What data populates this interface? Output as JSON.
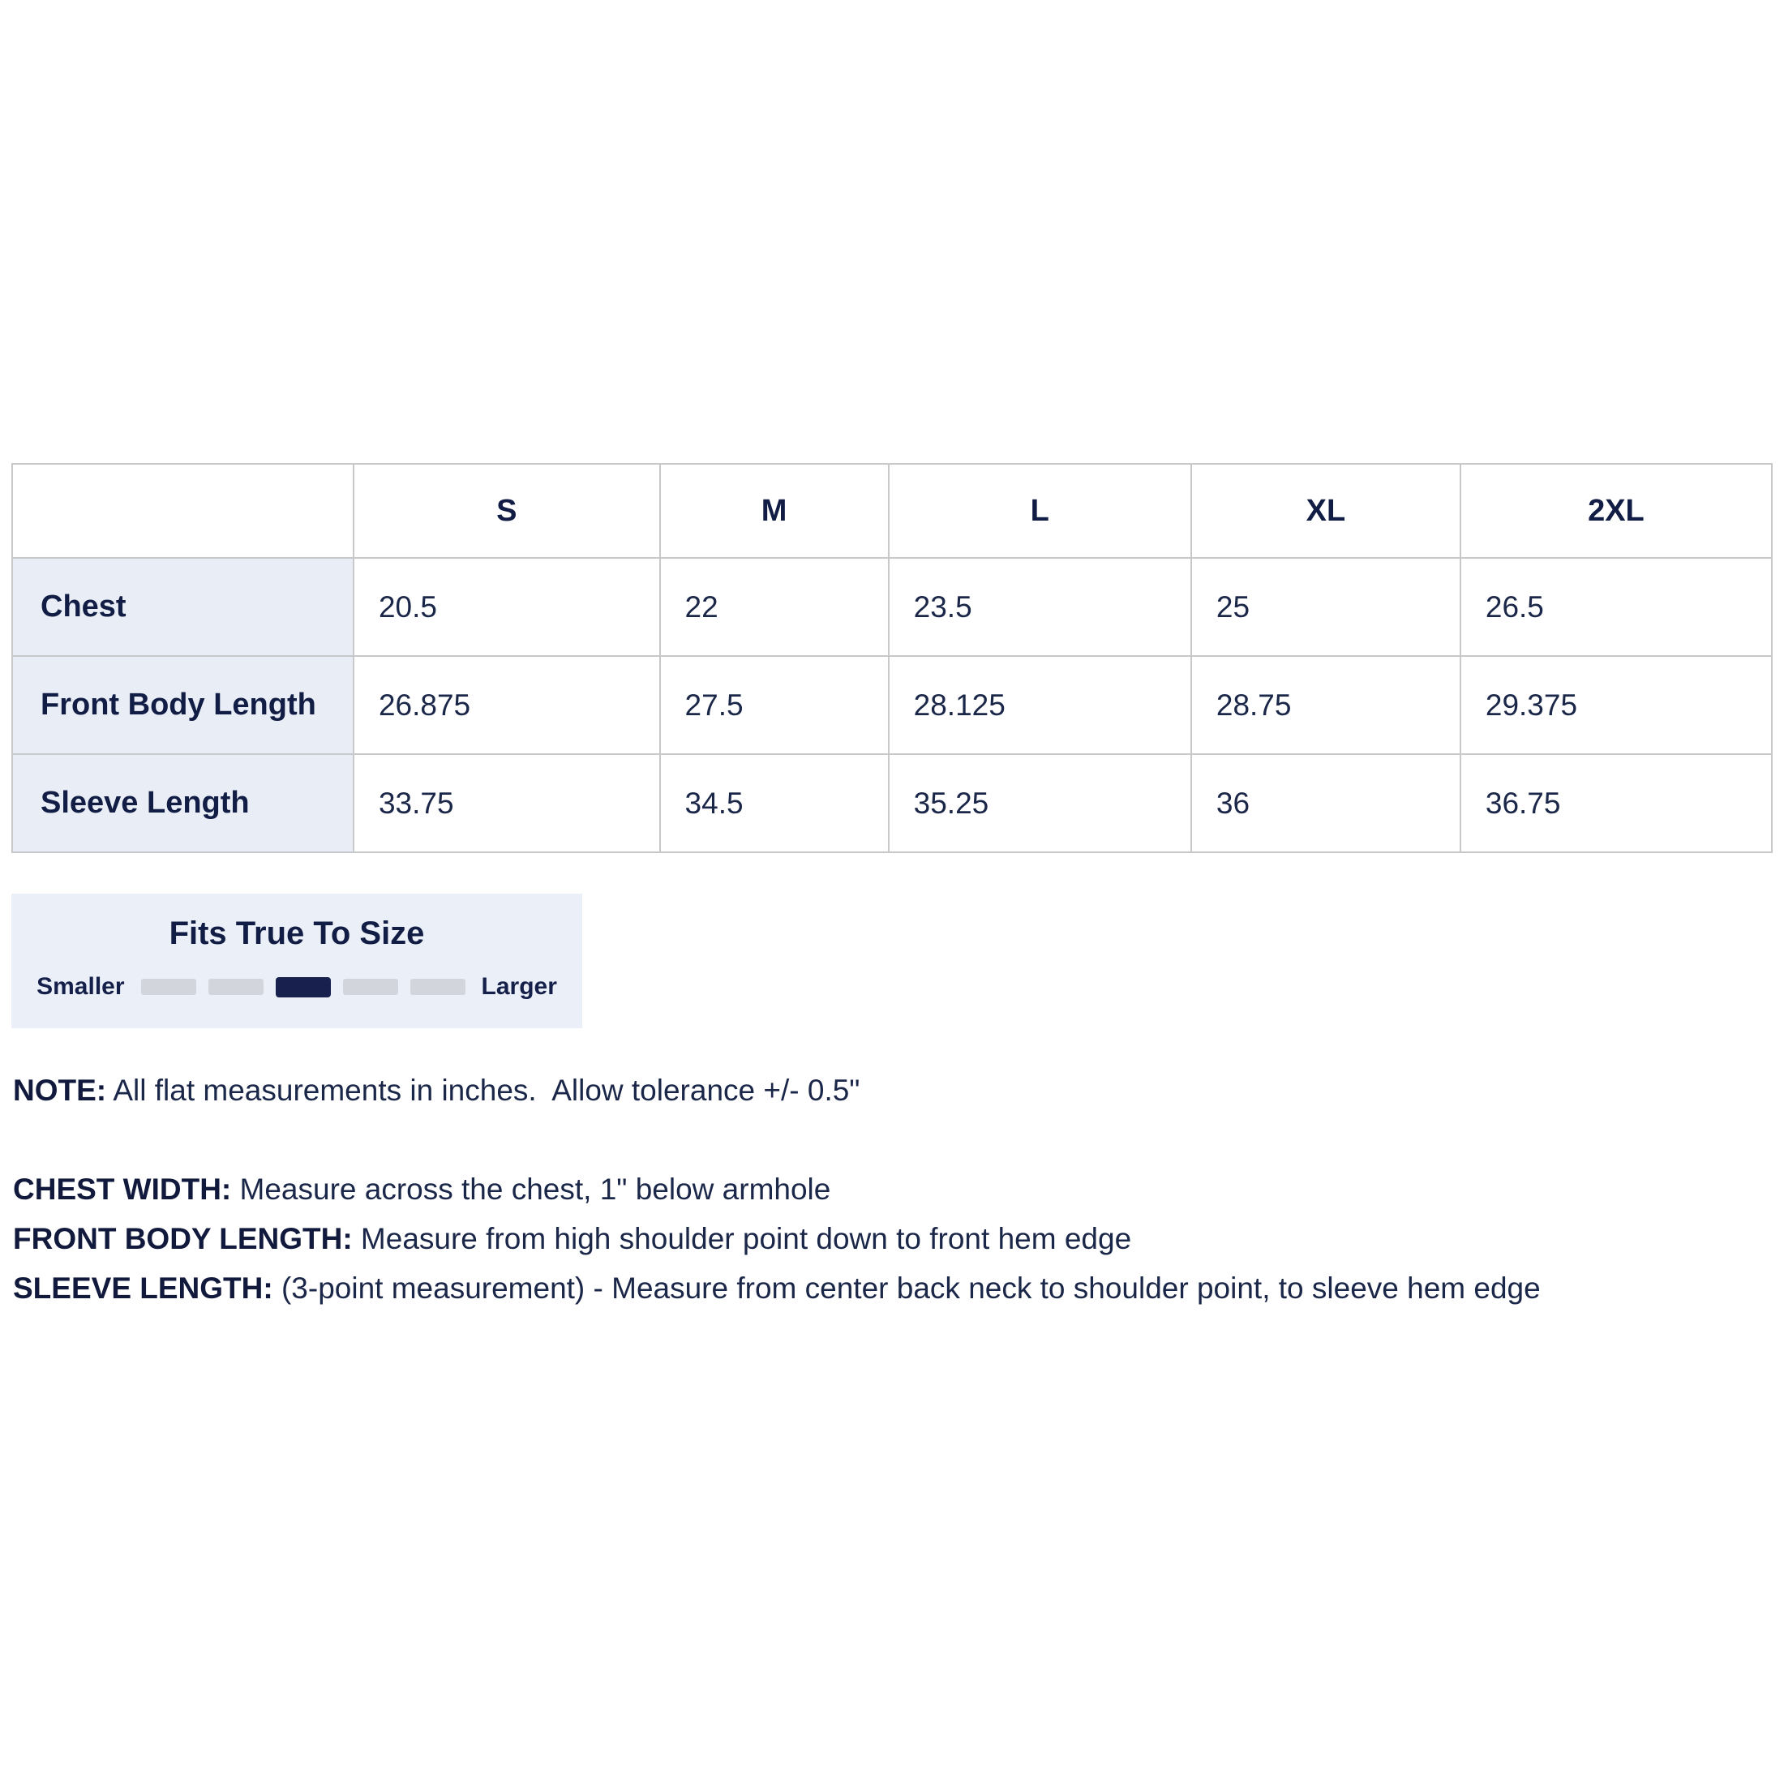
{
  "size_chart": {
    "columns": [
      "S",
      "M",
      "L",
      "XL",
      "2XL"
    ],
    "rows": [
      {
        "label": "Chest",
        "values": [
          "20.5",
          "22",
          "23.5",
          "25",
          "26.5"
        ]
      },
      {
        "label": "Front Body Length",
        "values": [
          "26.875",
          "27.5",
          "28.125",
          "28.75",
          "29.375"
        ]
      },
      {
        "label": "Sleeve Length",
        "values": [
          "33.75",
          "34.5",
          "35.25",
          "36",
          "36.75"
        ]
      }
    ]
  },
  "fit_indicator": {
    "title": "Fits True To Size",
    "left_label": "Smaller",
    "right_label": "Larger",
    "segments": 5,
    "selected_index": 2
  },
  "notes": {
    "note_label": "NOTE:",
    "note_text": " All flat measurements in inches.  Allow tolerance +/- 0.5\"",
    "definitions": [
      {
        "label": "CHEST WIDTH:",
        "text": " Measure across the chest, 1\" below armhole"
      },
      {
        "label": "FRONT BODY LENGTH:",
        "text": " Measure from high shoulder point down to front hem edge"
      },
      {
        "label": "SLEEVE LENGTH:",
        "text": " (3-point measurement) - Measure from center back neck to shoulder point, to sleeve hem edge"
      }
    ]
  },
  "colors": {
    "text_navy": "#1b2749",
    "bold_navy": "#121d45",
    "row_label_background": "#e9eef6",
    "fit_box_background": "#ebeff7",
    "table_border": "#c7c8ca",
    "segment_unselected": "#d2d5dc",
    "segment_selected": "#18214d",
    "page_background": "#ffffff"
  }
}
